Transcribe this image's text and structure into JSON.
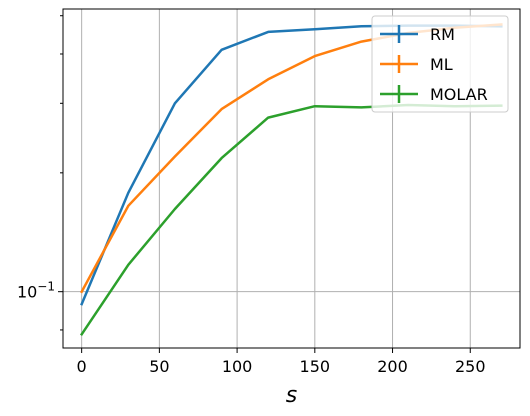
{
  "chart_data": {
    "type": "line",
    "title": "",
    "xlabel": "s",
    "ylabel": "",
    "yscale": "log",
    "x": [
      0,
      30,
      60,
      90,
      120,
      150,
      180,
      210,
      240,
      270
    ],
    "xlim": [
      -12,
      282
    ],
    "ylim": [
      0.072,
      0.52
    ],
    "xticks": [
      0,
      50,
      100,
      150,
      200,
      250
    ],
    "xtick_labels": [
      "0",
      "50",
      "100",
      "150",
      "200",
      "250"
    ],
    "ytick_major": [
      0.1
    ],
    "ytick_major_labels": [
      "10−1"
    ],
    "ytick_minor": [
      0.08,
      0.2,
      0.3,
      0.4,
      0.5
    ],
    "grid": true,
    "legend_position": "top-right",
    "series": [
      {
        "name": "RM",
        "color": "#1f77b4",
        "values": [
          0.093,
          0.178,
          0.3,
          0.41,
          0.455,
          0.462,
          0.47,
          0.472,
          0.472,
          0.47
        ]
      },
      {
        "name": "ML",
        "color": "#ff7f0e",
        "values": [
          0.1,
          0.165,
          0.22,
          0.29,
          0.345,
          0.395,
          0.43,
          0.452,
          0.466,
          0.475
        ]
      },
      {
        "name": "MOLAR",
        "color": "#2ca02c",
        "values": [
          0.078,
          0.117,
          0.162,
          0.218,
          0.276,
          0.295,
          0.293,
          0.297,
          0.295,
          0.296
        ]
      }
    ]
  }
}
